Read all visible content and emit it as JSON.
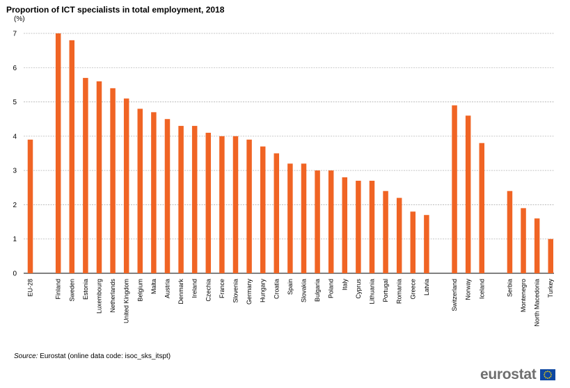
{
  "chart_data": {
    "type": "bar",
    "title": "Proportion of ICT specialists in total employment, 2018",
    "ylabel": "(%)",
    "xlabel": "",
    "ylim": [
      0,
      7
    ],
    "yticks": [
      0,
      1,
      2,
      3,
      4,
      5,
      6,
      7
    ],
    "grid": true,
    "bar_color": "#f06424",
    "grid_color": "#b3b3b3",
    "groups": [
      {
        "categories": [
          "EU-28"
        ],
        "values": [
          3.9
        ]
      },
      {
        "categories": [
          "Finland",
          "Sweden",
          "Estonia",
          "Luxembourg",
          "Netherlands",
          "United Kingdom",
          "Belgium",
          "Malta",
          "Austria",
          "Denmark",
          "Ireland",
          "Czechia",
          "France",
          "Slovenia",
          "Germany",
          "Hungary",
          "Croatia",
          "Spain",
          "Slovakia",
          "Bulgaria",
          "Poland",
          "Italy",
          "Cyprus",
          "Lithuania",
          "Portugal",
          "Romania",
          "Greece",
          "Latvia"
        ],
        "values": [
          7.0,
          6.8,
          5.7,
          5.6,
          5.4,
          5.1,
          4.8,
          4.7,
          4.5,
          4.3,
          4.3,
          4.1,
          4.0,
          4.0,
          3.9,
          3.7,
          3.5,
          3.2,
          3.2,
          3.0,
          3.0,
          2.8,
          2.7,
          2.7,
          2.4,
          2.2,
          1.8,
          1.7
        ]
      },
      {
        "categories": [
          "Switzerland",
          "Norway",
          "Iceland"
        ],
        "values": [
          4.9,
          4.6,
          3.8
        ]
      },
      {
        "categories": [
          "Serbia",
          "Montenegro",
          "North Macedonia",
          "Turkey"
        ],
        "values": [
          2.4,
          1.9,
          1.6,
          1.0
        ]
      }
    ]
  },
  "source": {
    "label": "Source:",
    "text": "Eurostat (online data code: isoc_sks_itspt)"
  },
  "logo": {
    "text": "eurostat",
    "flag_color": "#0e47a1",
    "star_color": "#ffdd00"
  }
}
